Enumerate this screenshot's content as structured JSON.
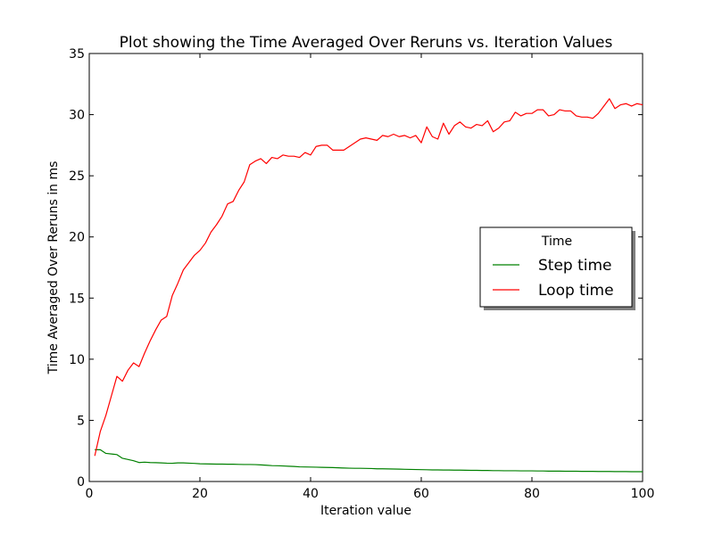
{
  "chart_data": {
    "type": "line",
    "title": "Plot showing the Time Averaged Over Reruns vs. Iteration Values",
    "xlabel": "Iteration value",
    "ylabel": "Time Averaged Over Reruns in ms",
    "xlim": [
      0,
      100
    ],
    "ylim": [
      0,
      35
    ],
    "xticks": [
      0,
      20,
      40,
      60,
      80,
      100
    ],
    "yticks": [
      0,
      5,
      10,
      15,
      20,
      25,
      30,
      35
    ],
    "grid": false,
    "legend": {
      "title": "Time",
      "placement": "center-right"
    },
    "series": [
      {
        "name": "Step time",
        "color": "#008000",
        "x": [
          1,
          2,
          3,
          4,
          5,
          6,
          7,
          8,
          9,
          10,
          11,
          12,
          13,
          14,
          15,
          16,
          17,
          18,
          19,
          20,
          21,
          22,
          23,
          24,
          25,
          26,
          27,
          28,
          29,
          30,
          31,
          32,
          33,
          34,
          35,
          36,
          37,
          38,
          39,
          40,
          41,
          42,
          43,
          44,
          45,
          46,
          47,
          48,
          49,
          50,
          51,
          52,
          53,
          54,
          55,
          56,
          57,
          58,
          59,
          60,
          61,
          62,
          63,
          64,
          65,
          66,
          67,
          68,
          69,
          70,
          71,
          72,
          73,
          74,
          75,
          76,
          77,
          78,
          79,
          80,
          81,
          82,
          83,
          84,
          85,
          86,
          87,
          88,
          89,
          90,
          91,
          92,
          93,
          94,
          95,
          96,
          97,
          98,
          99,
          100
        ],
        "values": [
          2.6,
          2.6,
          2.3,
          2.25,
          2.2,
          1.9,
          1.8,
          1.7,
          1.55,
          1.58,
          1.55,
          1.54,
          1.52,
          1.5,
          1.49,
          1.52,
          1.52,
          1.5,
          1.48,
          1.45,
          1.44,
          1.43,
          1.42,
          1.42,
          1.41,
          1.41,
          1.4,
          1.39,
          1.39,
          1.38,
          1.36,
          1.33,
          1.3,
          1.29,
          1.27,
          1.25,
          1.23,
          1.2,
          1.19,
          1.18,
          1.17,
          1.16,
          1.15,
          1.14,
          1.12,
          1.1,
          1.09,
          1.08,
          1.08,
          1.07,
          1.06,
          1.04,
          1.04,
          1.03,
          1.02,
          1.01,
          1.0,
          0.99,
          0.98,
          0.97,
          0.96,
          0.95,
          0.95,
          0.94,
          0.94,
          0.93,
          0.93,
          0.92,
          0.91,
          0.91,
          0.9,
          0.9,
          0.89,
          0.89,
          0.88,
          0.88,
          0.88,
          0.87,
          0.87,
          0.87,
          0.86,
          0.86,
          0.85,
          0.85,
          0.85,
          0.84,
          0.84,
          0.84,
          0.83,
          0.83,
          0.83,
          0.82,
          0.82,
          0.82,
          0.81,
          0.81,
          0.81,
          0.8,
          0.8,
          0.8
        ]
      },
      {
        "name": "Loop time",
        "color": "#ff0000",
        "x": [
          1,
          2,
          3,
          4,
          5,
          6,
          7,
          8,
          9,
          10,
          11,
          12,
          13,
          14,
          15,
          16,
          17,
          18,
          19,
          20,
          21,
          22,
          23,
          24,
          25,
          26,
          27,
          28,
          29,
          30,
          31,
          32,
          33,
          34,
          35,
          36,
          37,
          38,
          39,
          40,
          41,
          42,
          43,
          44,
          45,
          46,
          47,
          48,
          49,
          50,
          51,
          52,
          53,
          54,
          55,
          56,
          57,
          58,
          59,
          60,
          61,
          62,
          63,
          64,
          65,
          66,
          67,
          68,
          69,
          70,
          71,
          72,
          73,
          74,
          75,
          76,
          77,
          78,
          79,
          80,
          81,
          82,
          83,
          84,
          85,
          86,
          87,
          88,
          89,
          90,
          91,
          92,
          93,
          94,
          95,
          96,
          97,
          98,
          99,
          100
        ],
        "values": [
          2.1,
          4.1,
          5.4,
          7.0,
          8.6,
          8.2,
          9.1,
          9.7,
          9.4,
          10.5,
          11.5,
          12.4,
          13.2,
          13.5,
          15.2,
          16.2,
          17.3,
          17.9,
          18.5,
          18.9,
          19.5,
          20.4,
          21.0,
          21.7,
          22.7,
          22.9,
          23.8,
          24.5,
          25.9,
          26.2,
          26.4,
          26.0,
          26.5,
          26.4,
          26.7,
          26.6,
          26.6,
          26.5,
          26.9,
          26.7,
          27.4,
          27.5,
          27.5,
          27.1,
          27.1,
          27.1,
          27.4,
          27.7,
          28.0,
          28.1,
          28.0,
          27.9,
          28.3,
          28.2,
          28.4,
          28.2,
          28.3,
          28.1,
          28.3,
          27.7,
          29.0,
          28.2,
          28.0,
          29.3,
          28.4,
          29.1,
          29.4,
          29.0,
          28.9,
          29.2,
          29.1,
          29.5,
          28.6,
          28.9,
          29.4,
          29.5,
          30.2,
          29.9,
          30.1,
          30.1,
          30.4,
          30.4,
          29.9,
          30.0,
          30.4,
          30.3,
          30.3,
          29.9,
          29.8,
          29.8,
          29.7,
          30.1,
          30.7,
          31.3,
          30.5,
          30.8,
          30.9,
          30.7,
          30.9,
          30.8
        ]
      }
    ]
  }
}
